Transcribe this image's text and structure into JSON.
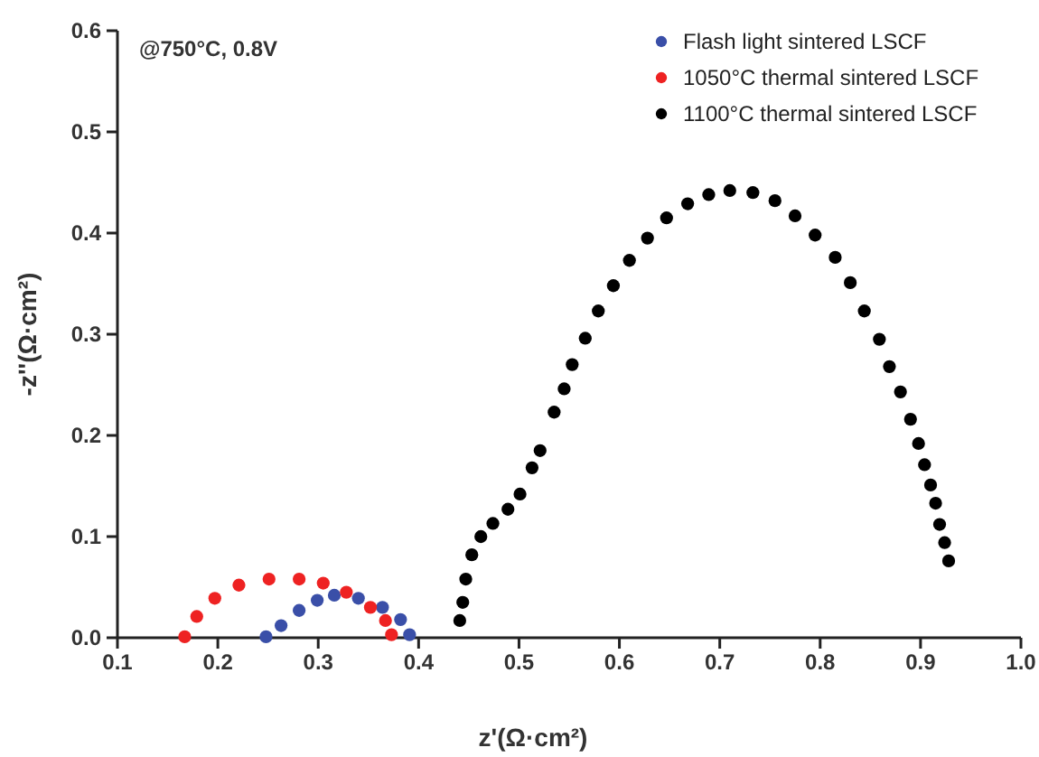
{
  "chart_data": {
    "type": "scatter",
    "xlabel": "z'(Ω·cm²)",
    "ylabel": "-z''(Ω·cm²)",
    "annotations": [
      "@750°C, 0.8V"
    ],
    "xlim": [
      0.1,
      1.0
    ],
    "ylim": [
      0,
      0.6
    ],
    "xticks": [
      0.1,
      0.2,
      0.3,
      0.4,
      0.5,
      0.6,
      0.7,
      0.8,
      0.9,
      {
        "value": 1.0,
        "label": "1.0"
      }
    ],
    "yticks": [
      {
        "value": 0,
        "label": "0.0"
      },
      0.1,
      0.2,
      0.3,
      0.4,
      0.5,
      0.6
    ],
    "marker": "circle",
    "legend": "top right",
    "grid": false,
    "series": [
      {
        "name": "Flash light sintered LSCF",
        "color": "#3a4fa8",
        "x": [
          0.248,
          0.263,
          0.281,
          0.299,
          0.316,
          0.34,
          0.364,
          0.382,
          0.391
        ],
        "values": [
          0.001,
          0.012,
          0.027,
          0.037,
          0.042,
          0.039,
          0.03,
          0.018,
          0.003
        ]
      },
      {
        "name": "1050°C thermal sintered LSCF",
        "color": "#ee2222",
        "x": [
          0.167,
          0.179,
          0.197,
          0.221,
          0.251,
          0.281,
          0.305,
          0.328,
          0.352,
          0.367,
          0.373
        ],
        "values": [
          0.001,
          0.021,
          0.039,
          0.052,
          0.058,
          0.058,
          0.054,
          0.045,
          0.03,
          0.017,
          0.003
        ]
      },
      {
        "name": "1100°C thermal sintered LSCF",
        "color": "#000000",
        "x": [
          0.441,
          0.444,
          0.447,
          0.453,
          0.462,
          0.474,
          0.489,
          0.501,
          0.513,
          0.521,
          0.535,
          0.545,
          0.553,
          0.566,
          0.579,
          0.594,
          0.61,
          0.628,
          0.647,
          0.668,
          0.689,
          0.71,
          0.733,
          0.755,
          0.775,
          0.795,
          0.815,
          0.83,
          0.844,
          0.859,
          0.869,
          0.88,
          0.89,
          0.898,
          0.904,
          0.91,
          0.915,
          0.919,
          0.924,
          0.928
        ],
        "values": [
          0.017,
          0.035,
          0.058,
          0.082,
          0.1,
          0.113,
          0.127,
          0.142,
          0.168,
          0.185,
          0.223,
          0.246,
          0.27,
          0.296,
          0.323,
          0.348,
          0.373,
          0.395,
          0.415,
          0.429,
          0.438,
          0.442,
          0.44,
          0.432,
          0.417,
          0.398,
          0.376,
          0.351,
          0.323,
          0.295,
          0.268,
          0.243,
          0.216,
          0.192,
          0.171,
          0.151,
          0.133,
          0.112,
          0.094,
          0.076
        ]
      }
    ]
  }
}
